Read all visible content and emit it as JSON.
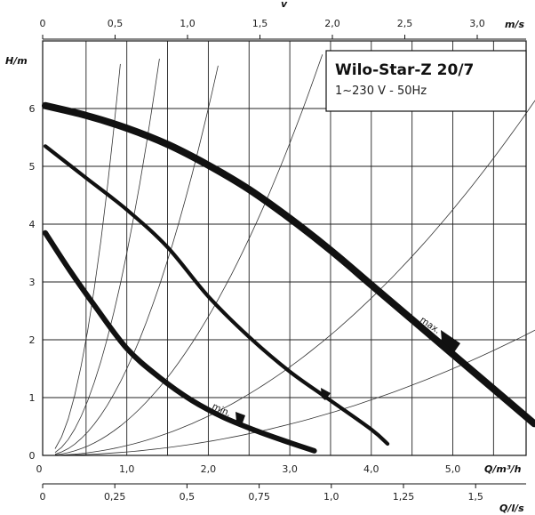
{
  "chart_data": {
    "type": "line",
    "title": "Wilo-Star-Z 20/7",
    "subtitle": "1~230 V - 50Hz",
    "xlabel": "Q/m³/h",
    "ylabel": "H/m",
    "top_axis_label": "v",
    "top_axis_unit": "m/s",
    "bottom2_axis_unit": "Q/l/s",
    "xlim": [
      0,
      6
    ],
    "ylim": [
      0,
      7
    ],
    "grid": true,
    "x_ticks": [
      "0",
      "1,0",
      "2,0",
      "3,0",
      "4,0",
      "5,0"
    ],
    "y_ticks": [
      "0",
      "1",
      "2",
      "3",
      "4",
      "5",
      "6"
    ],
    "top_ticks": [
      "0",
      "0,5",
      "1,0",
      "1,5",
      "2,0",
      "2,5",
      "3,0"
    ],
    "bottom2_ticks": [
      "0",
      "0,25",
      "0,5",
      "0,75",
      "1,0",
      "1,25",
      "1,5"
    ],
    "annotations": {
      "max_label": "max.",
      "min_label": "min."
    },
    "series": [
      {
        "name": "max.",
        "x": [
          0,
          0.5,
          1.0,
          1.5,
          2.0,
          2.5,
          3.0,
          3.5,
          4.0,
          4.5,
          5.0,
          5.5,
          6.0
        ],
        "y": [
          6.05,
          5.88,
          5.66,
          5.38,
          5.02,
          4.6,
          4.1,
          3.55,
          2.95,
          2.35,
          1.75,
          1.15,
          0.55
        ]
      },
      {
        "name": "",
        "x": [
          0,
          0.5,
          1.0,
          1.5,
          2.0,
          2.5,
          3.0,
          3.5,
          4.0,
          4.2
        ],
        "y": [
          5.35,
          4.8,
          4.25,
          3.6,
          2.75,
          2.05,
          1.45,
          0.95,
          0.45,
          0.2
        ]
      },
      {
        "name": "min.",
        "x": [
          0,
          0.3,
          0.6,
          1.0,
          1.4,
          1.8,
          2.2,
          2.6,
          3.0,
          3.3
        ],
        "y": [
          3.85,
          3.2,
          2.6,
          1.85,
          1.35,
          0.95,
          0.65,
          0.42,
          0.22,
          0.08
        ]
      }
    ]
  }
}
